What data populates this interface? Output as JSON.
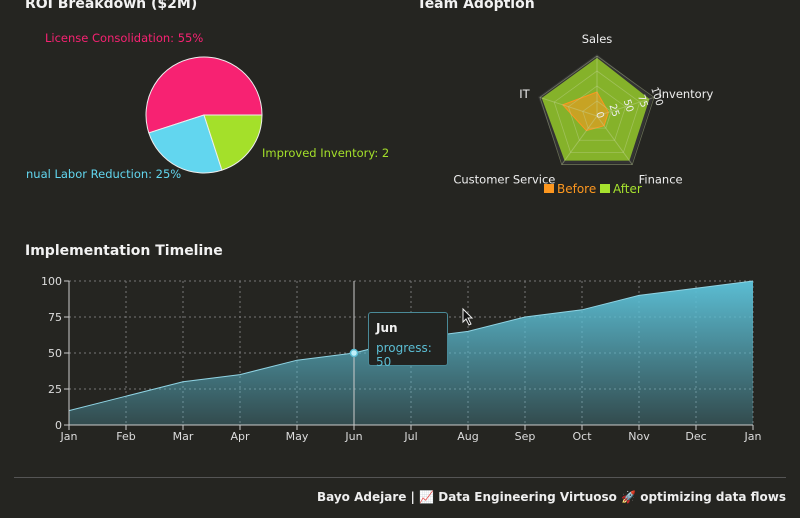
{
  "chart_data": [
    {
      "type": "pie",
      "title": "ROI Breakdown ($2M)",
      "slices": [
        {
          "label": "License Consolidation: 55%",
          "value": 55,
          "color": "#f72272"
        },
        {
          "label": "nual Labor Reduction: 25%",
          "value": 25,
          "color": "#62d6ef"
        },
        {
          "label": "Improved Inventory: 2",
          "value": 20,
          "color": "#a4e02a"
        }
      ]
    },
    {
      "type": "radar",
      "title": "Team Adoption",
      "axes": [
        "Sales",
        "Inventory",
        "Finance",
        "Customer Service",
        "IT"
      ],
      "radial_ticks": [
        "0",
        "25",
        "50",
        "75",
        "100"
      ],
      "range": [
        0,
        100
      ],
      "series": [
        {
          "name": "Before",
          "values": [
            40,
            20,
            20,
            30,
            60
          ],
          "color": "#fd971f"
        },
        {
          "name": "After",
          "values": [
            100,
            95,
            95,
            95,
            100
          ],
          "color": "#a6e22e"
        }
      ],
      "legend": "bottom"
    },
    {
      "type": "area",
      "title": "Implementation Timeline",
      "categories": [
        "Jan",
        "Feb",
        "Mar",
        "Apr",
        "May",
        "Jun",
        "Jul",
        "Aug",
        "Sep",
        "Oct",
        "Nov",
        "Dec",
        "Jan"
      ],
      "series": [
        {
          "name": "progress",
          "values": [
            10,
            20,
            30,
            35,
            45,
            50,
            60,
            65,
            75,
            80,
            90,
            95,
            100
          ],
          "color": "#5bbdd3"
        }
      ],
      "y_ticks": [
        "0",
        "25",
        "50",
        "75",
        "100"
      ],
      "ylim": [
        0,
        100
      ],
      "grid": true,
      "tooltip": {
        "title": "Jun",
        "text": "progress: 50"
      }
    }
  ],
  "footer": "Bayo Adejare | 📈 Data Engineering Virtuoso 🚀 optimizing data flows"
}
